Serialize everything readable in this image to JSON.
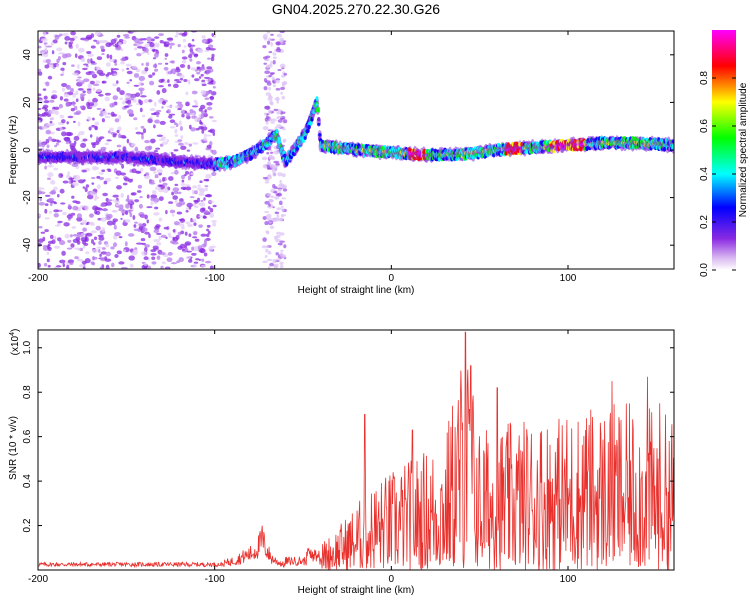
{
  "title": "GN04.2025.270.22.30.G26",
  "chart_data": [
    {
      "type": "heatmap",
      "xlabel": "Height of straight line (km)",
      "ylabel": "Frequency (Hz)",
      "xlim": [
        -200,
        160
      ],
      "ylim": [
        -50,
        50
      ],
      "xticks": [
        -200,
        -100,
        0,
        100
      ],
      "yticks": [
        -40,
        -20,
        0,
        20,
        40
      ],
      "colorbar": {
        "label": "Normalized spectral amplitude",
        "range": [
          0,
          1
        ],
        "ticks": [
          0.0,
          0.2,
          0.4,
          0.6,
          0.8
        ],
        "tick_labels": [
          "0.0",
          "0.2",
          "0.4",
          "0.6",
          "0.8"
        ],
        "colors": [
          "#ffffff",
          "#8a2be2",
          "#0000ff",
          "#00ffff",
          "#00ff00",
          "#ffff00",
          "#ff0000",
          "#ff00ff"
        ]
      },
      "ridge": {
        "description_points": [
          [
            -200,
            -3
          ],
          [
            -150,
            -3
          ],
          [
            -120,
            -5
          ],
          [
            -100,
            -6
          ],
          [
            -90,
            -5
          ],
          [
            -80,
            -2
          ],
          [
            -70,
            3
          ],
          [
            -65,
            7
          ],
          [
            -60,
            -5
          ],
          [
            -55,
            0
          ],
          [
            -48,
            8
          ],
          [
            -42,
            20
          ],
          [
            -40,
            2
          ],
          [
            -20,
            0
          ],
          [
            0,
            -1
          ],
          [
            20,
            -2
          ],
          [
            40,
            -2
          ],
          [
            60,
            0
          ],
          [
            80,
            1
          ],
          [
            100,
            2
          ],
          [
            120,
            3
          ],
          [
            140,
            3
          ],
          [
            160,
            2
          ]
        ],
        "peak_regions": [
          [
            10,
            20
          ],
          [
            65,
            75
          ],
          [
            90,
            110
          ]
        ]
      }
    },
    {
      "type": "line",
      "xlabel": "Height of straight line (km)",
      "ylabel": "SNR (10 * v/v)",
      "y_scale_label": "(x10",
      "y_scale_exp": "4",
      "y_scale_close": ")",
      "xlim": [
        -200,
        160
      ],
      "ylim": [
        0,
        1.08
      ],
      "xticks": [
        -200,
        -100,
        0,
        100
      ],
      "yticks": [
        0.2,
        0.4,
        0.6,
        0.8,
        1.0
      ],
      "ytick_labels": [
        "0.2",
        "0.4",
        "0.6",
        "0.8",
        "1.0"
      ],
      "color": "#e8302c",
      "envelope": [
        [
          -200,
          0.03
        ],
        [
          -100,
          0.03
        ],
        [
          -90,
          0.06
        ],
        [
          -78,
          0.12
        ],
        [
          -73,
          0.2
        ],
        [
          -68,
          0.08
        ],
        [
          -60,
          0.03
        ],
        [
          -50,
          0.05
        ],
        [
          -40,
          0.12
        ],
        [
          -30,
          0.2
        ],
        [
          -20,
          0.3
        ],
        [
          -10,
          0.4
        ],
        [
          0,
          0.45
        ],
        [
          10,
          0.5
        ],
        [
          20,
          0.55
        ],
        [
          30,
          0.6
        ],
        [
          42,
          1.07
        ],
        [
          50,
          0.65
        ],
        [
          60,
          0.65
        ],
        [
          80,
          0.7
        ],
        [
          100,
          0.72
        ],
        [
          120,
          0.75
        ],
        [
          140,
          0.75
        ],
        [
          160,
          0.7
        ]
      ],
      "notable_peaks": [
        [
          -73,
          0.2
        ],
        [
          -15,
          0.7
        ],
        [
          12,
          0.63
        ],
        [
          42,
          1.07
        ],
        [
          45,
          0.92
        ],
        [
          60,
          0.82
        ],
        [
          95,
          0.68
        ],
        [
          110,
          0.63
        ],
        [
          125,
          0.85
        ],
        [
          145,
          0.87
        ],
        [
          152,
          0.75
        ]
      ]
    }
  ]
}
